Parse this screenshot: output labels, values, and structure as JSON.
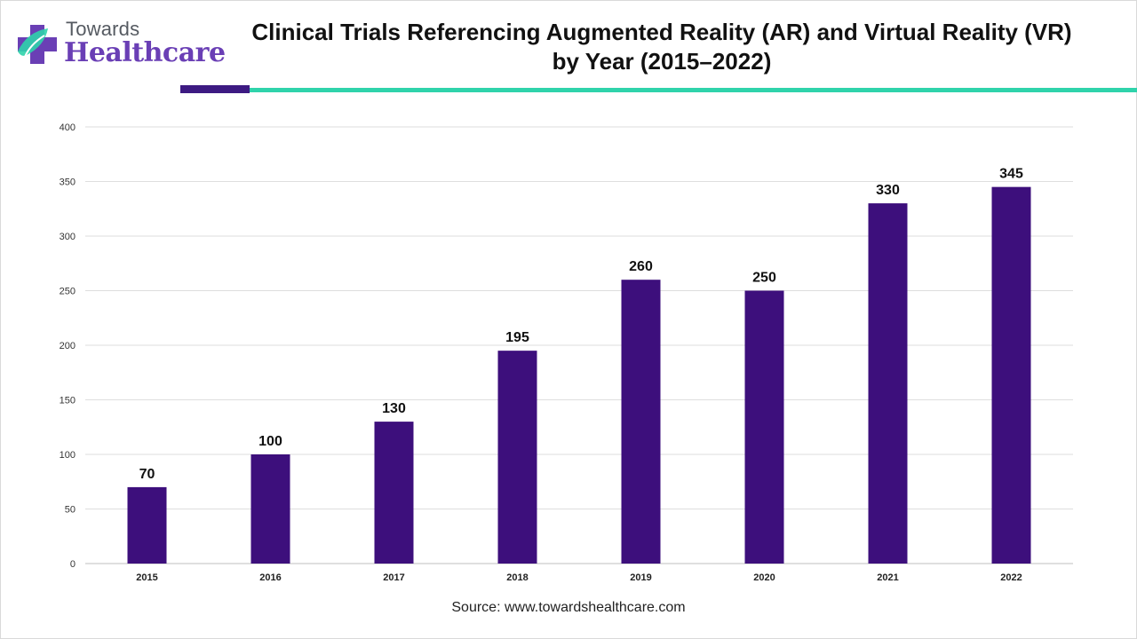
{
  "brand": {
    "name_top": "Towards",
    "name_bottom": "Healthcare",
    "colors": {
      "purple": "#6a3fb5",
      "teal": "#2fd3ab",
      "dark_purple": "#3d1a82"
    }
  },
  "header": {
    "title_line1": "Clinical Trials Referencing Augmented Reality (AR) and Virtual Reality (VR)",
    "title_line2": "by Year (2015–2022)"
  },
  "footer": {
    "source": "Source: www.towardshealthcare.com"
  },
  "chart_data": {
    "type": "bar",
    "categories": [
      "2015",
      "2016",
      "2017",
      "2018",
      "2019",
      "2020",
      "2021",
      "2022"
    ],
    "values": [
      70,
      100,
      130,
      195,
      260,
      250,
      330,
      345
    ],
    "ylim": [
      0,
      400
    ],
    "yticks": [
      0,
      50,
      100,
      150,
      200,
      250,
      300,
      350,
      400
    ],
    "grid": true,
    "data_labels": true,
    "bar_color": "#3d0f7c",
    "title": "Clinical Trials Referencing Augmented Reality (AR) and Virtual Reality (VR) by Year (2015–2022)"
  }
}
